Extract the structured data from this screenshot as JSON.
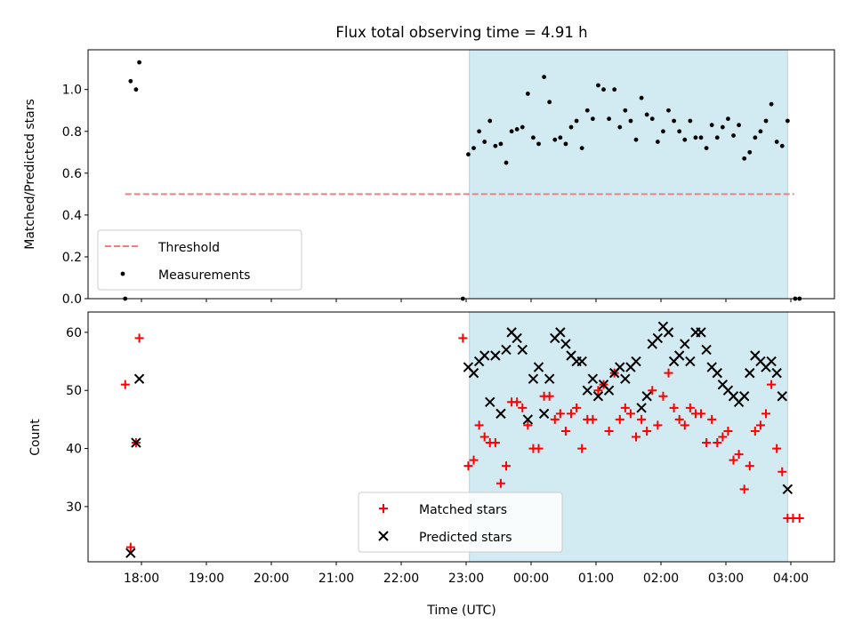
{
  "chart_data": {
    "type": "scatter",
    "title": "Flux total observing time = 4.91 h",
    "xlabel": "Time (UTC)",
    "xticks": [
      "18:00",
      "19:00",
      "20:00",
      "21:00",
      "22:00",
      "23:00",
      "00:00",
      "01:00",
      "02:00",
      "03:00",
      "04:00"
    ],
    "observing_window": {
      "start": "23:03",
      "end": "03:57",
      "color": "#add8e6"
    },
    "panels": [
      {
        "id": "ratio",
        "ylabel": "Matched/Predicted stars",
        "ylim": [
          0,
          1.19
        ],
        "yticks": [
          "0.0",
          "0.2",
          "0.4",
          "0.6",
          "0.8",
          "1.0"
        ],
        "legend": {
          "placement": "lower left",
          "entries": [
            "Threshold",
            "Measurements"
          ]
        },
        "threshold": {
          "label": "Threshold",
          "value": 0.5,
          "x_start": "17:45",
          "x_end": "04:03",
          "color": "#f08080",
          "style": "dashed"
        },
        "series": [
          {
            "name": "Measurements",
            "marker": "dot",
            "color": "#000000",
            "points": [
              [
                "17:45",
                0.0
              ],
              [
                "17:50",
                1.04
              ],
              [
                "17:55",
                1.0
              ],
              [
                "17:58",
                1.13
              ],
              [
                "22:57",
                0.0
              ],
              [
                "23:02",
                0.69
              ],
              [
                "23:07",
                0.72
              ],
              [
                "23:12",
                0.8
              ],
              [
                "23:17",
                0.75
              ],
              [
                "23:22",
                0.85
              ],
              [
                "23:27",
                0.73
              ],
              [
                "23:32",
                0.74
              ],
              [
                "23:37",
                0.65
              ],
              [
                "23:42",
                0.8
              ],
              [
                "23:47",
                0.81
              ],
              [
                "23:52",
                0.82
              ],
              [
                "23:57",
                0.98
              ],
              [
                "00:02",
                0.77
              ],
              [
                "00:07",
                0.74
              ],
              [
                "00:12",
                1.06
              ],
              [
                "00:17",
                0.94
              ],
              [
                "00:22",
                0.76
              ],
              [
                "00:27",
                0.77
              ],
              [
                "00:32",
                0.74
              ],
              [
                "00:37",
                0.82
              ],
              [
                "00:42",
                0.85
              ],
              [
                "00:47",
                0.72
              ],
              [
                "00:52",
                0.9
              ],
              [
                "00:57",
                0.86
              ],
              [
                "01:02",
                1.02
              ],
              [
                "01:07",
                1.0
              ],
              [
                "01:12",
                0.86
              ],
              [
                "01:17",
                1.0
              ],
              [
                "01:22",
                0.82
              ],
              [
                "01:27",
                0.9
              ],
              [
                "01:32",
                0.85
              ],
              [
                "01:37",
                0.76
              ],
              [
                "01:42",
                0.96
              ],
              [
                "01:47",
                0.88
              ],
              [
                "01:52",
                0.86
              ],
              [
                "01:57",
                0.75
              ],
              [
                "02:02",
                0.8
              ],
              [
                "02:07",
                0.9
              ],
              [
                "02:12",
                0.85
              ],
              [
                "02:17",
                0.8
              ],
              [
                "02:22",
                0.76
              ],
              [
                "02:27",
                0.85
              ],
              [
                "02:32",
                0.77
              ],
              [
                "02:37",
                0.77
              ],
              [
                "02:42",
                0.72
              ],
              [
                "02:47",
                0.83
              ],
              [
                "02:52",
                0.77
              ],
              [
                "02:57",
                0.82
              ],
              [
                "03:02",
                0.86
              ],
              [
                "03:07",
                0.78
              ],
              [
                "03:12",
                0.83
              ],
              [
                "03:17",
                0.67
              ],
              [
                "03:22",
                0.7
              ],
              [
                "03:27",
                0.77
              ],
              [
                "03:32",
                0.8
              ],
              [
                "03:37",
                0.85
              ],
              [
                "03:42",
                0.93
              ],
              [
                "03:47",
                0.75
              ],
              [
                "03:52",
                0.73
              ],
              [
                "03:57",
                0.85
              ],
              [
                "04:04",
                0.0
              ],
              [
                "04:08",
                0.0
              ]
            ]
          }
        ]
      },
      {
        "id": "count",
        "ylabel": "Count",
        "ylim": [
          20.5,
          63.5
        ],
        "yticks": [
          "30",
          "40",
          "50",
          "60"
        ],
        "legend": {
          "placement": "lower center",
          "entries": [
            "Matched stars",
            "Predicted stars"
          ]
        },
        "series": [
          {
            "name": "Matched stars",
            "marker": "plus",
            "color": "#ff0000",
            "points": [
              [
                "17:45",
                51
              ],
              [
                "17:50",
                23
              ],
              [
                "17:55",
                41
              ],
              [
                "17:58",
                59
              ],
              [
                "22:57",
                59
              ],
              [
                "23:02",
                37
              ],
              [
                "23:07",
                38
              ],
              [
                "23:12",
                44
              ],
              [
                "23:17",
                42
              ],
              [
                "23:22",
                41
              ],
              [
                "23:27",
                41
              ],
              [
                "23:32",
                34
              ],
              [
                "23:37",
                37
              ],
              [
                "23:42",
                48
              ],
              [
                "23:47",
                48
              ],
              [
                "23:52",
                47
              ],
              [
                "23:57",
                44
              ],
              [
                "00:02",
                40
              ],
              [
                "00:07",
                40
              ],
              [
                "00:12",
                49
              ],
              [
                "00:17",
                49
              ],
              [
                "00:22",
                45
              ],
              [
                "00:27",
                46
              ],
              [
                "00:32",
                43
              ],
              [
                "00:37",
                46
              ],
              [
                "00:42",
                47
              ],
              [
                "00:47",
                40
              ],
              [
                "00:52",
                45
              ],
              [
                "00:57",
                45
              ],
              [
                "01:02",
                50
              ],
              [
                "01:07",
                51
              ],
              [
                "01:12",
                43
              ],
              [
                "01:17",
                53
              ],
              [
                "01:22",
                45
              ],
              [
                "01:27",
                47
              ],
              [
                "01:32",
                46
              ],
              [
                "01:37",
                42
              ],
              [
                "01:42",
                45
              ],
              [
                "01:47",
                43
              ],
              [
                "01:52",
                50
              ],
              [
                "01:57",
                44
              ],
              [
                "02:02",
                49
              ],
              [
                "02:07",
                53
              ],
              [
                "02:12",
                47
              ],
              [
                "02:17",
                45
              ],
              [
                "02:22",
                44
              ],
              [
                "02:27",
                47
              ],
              [
                "02:32",
                46
              ],
              [
                "02:37",
                46
              ],
              [
                "02:42",
                41
              ],
              [
                "02:47",
                45
              ],
              [
                "02:52",
                41
              ],
              [
                "02:57",
                42
              ],
              [
                "03:02",
                43
              ],
              [
                "03:07",
                38
              ],
              [
                "03:12",
                39
              ],
              [
                "03:17",
                33
              ],
              [
                "03:22",
                37
              ],
              [
                "03:27",
                43
              ],
              [
                "03:32",
                44
              ],
              [
                "03:37",
                46
              ],
              [
                "03:42",
                51
              ],
              [
                "03:47",
                40
              ],
              [
                "03:52",
                36
              ],
              [
                "03:57",
                28
              ],
              [
                "04:02",
                28
              ],
              [
                "04:08",
                28
              ]
            ]
          },
          {
            "name": "Predicted stars",
            "marker": "x",
            "color": "#000000",
            "points": [
              [
                "17:50",
                22
              ],
              [
                "17:55",
                41
              ],
              [
                "17:58",
                52
              ],
              [
                "23:02",
                54
              ],
              [
                "23:07",
                53
              ],
              [
                "23:12",
                55
              ],
              [
                "23:17",
                56
              ],
              [
                "23:22",
                48
              ],
              [
                "23:27",
                56
              ],
              [
                "23:32",
                46
              ],
              [
                "23:37",
                57
              ],
              [
                "23:42",
                60
              ],
              [
                "23:47",
                59
              ],
              [
                "23:52",
                57
              ],
              [
                "23:57",
                45
              ],
              [
                "00:02",
                52
              ],
              [
                "00:07",
                54
              ],
              [
                "00:12",
                46
              ],
              [
                "00:17",
                52
              ],
              [
                "00:22",
                59
              ],
              [
                "00:27",
                60
              ],
              [
                "00:32",
                58
              ],
              [
                "00:37",
                56
              ],
              [
                "00:42",
                55
              ],
              [
                "00:47",
                55
              ],
              [
                "00:52",
                50
              ],
              [
                "00:57",
                52
              ],
              [
                "01:02",
                49
              ],
              [
                "01:07",
                51
              ],
              [
                "01:12",
                50
              ],
              [
                "01:17",
                53
              ],
              [
                "01:22",
                54
              ],
              [
                "01:27",
                52
              ],
              [
                "01:32",
                54
              ],
              [
                "01:37",
                55
              ],
              [
                "01:42",
                47
              ],
              [
                "01:47",
                49
              ],
              [
                "01:52",
                58
              ],
              [
                "01:57",
                59
              ],
              [
                "02:02",
                61
              ],
              [
                "02:07",
                60
              ],
              [
                "02:12",
                55
              ],
              [
                "02:17",
                56
              ],
              [
                "02:22",
                58
              ],
              [
                "02:27",
                55
              ],
              [
                "02:32",
                60
              ],
              [
                "02:37",
                60
              ],
              [
                "02:42",
                57
              ],
              [
                "02:47",
                54
              ],
              [
                "02:52",
                53
              ],
              [
                "02:57",
                51
              ],
              [
                "03:02",
                50
              ],
              [
                "03:07",
                49
              ],
              [
                "03:12",
                48
              ],
              [
                "03:17",
                49
              ],
              [
                "03:22",
                53
              ],
              [
                "03:27",
                56
              ],
              [
                "03:32",
                55
              ],
              [
                "03:37",
                54
              ],
              [
                "03:42",
                55
              ],
              [
                "03:47",
                53
              ],
              [
                "03:52",
                49
              ],
              [
                "03:57",
                33
              ]
            ]
          }
        ]
      }
    ]
  }
}
